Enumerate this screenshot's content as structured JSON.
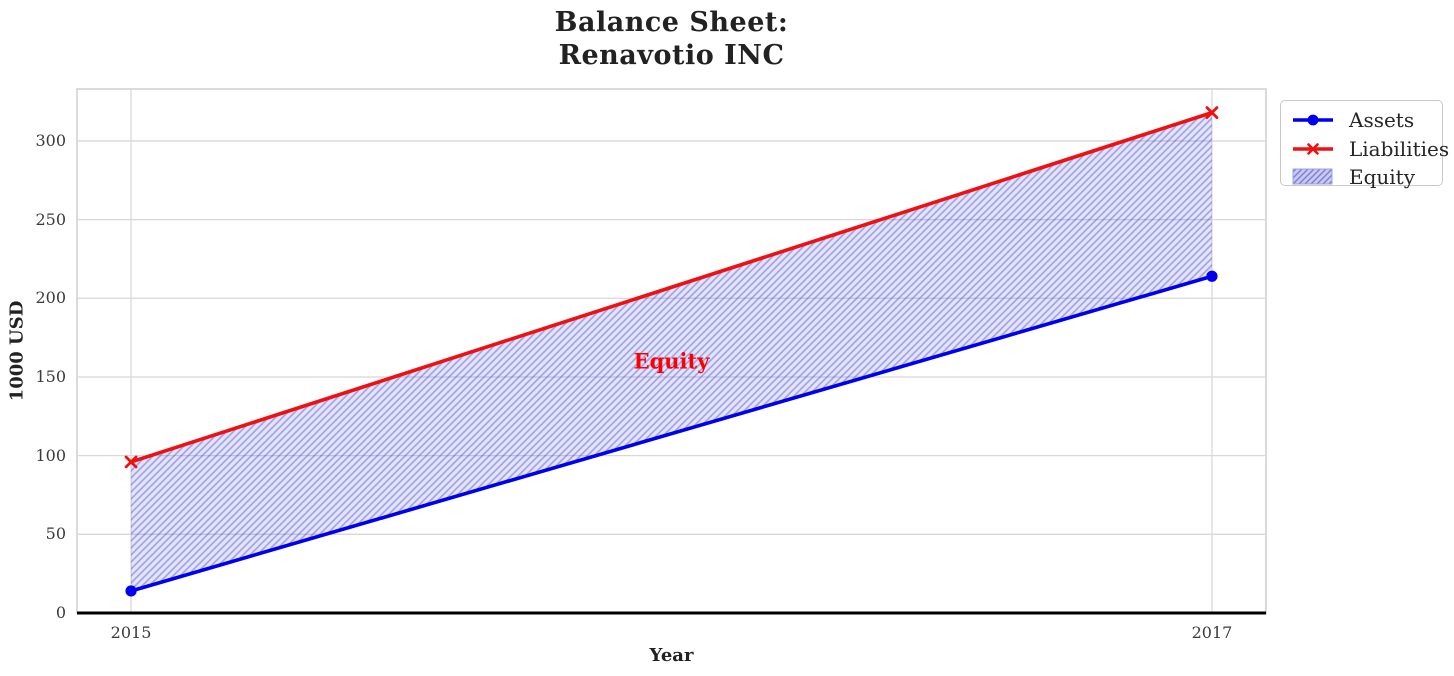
{
  "chart_data": {
    "type": "line",
    "title_lines": [
      "Balance Sheet:",
      "Renavotio INC"
    ],
    "title": "Balance Sheet:\nRenavotio INC",
    "xlabel": "Year",
    "ylabel": "1000 USD",
    "x": [
      2015,
      2017
    ],
    "series": [
      {
        "name": "Assets",
        "color": "#0000ee",
        "marker": "circle",
        "values": [
          14,
          214
        ]
      },
      {
        "name": "Liabilities",
        "color": "#f01010",
        "marker": "x",
        "values": [
          96,
          318
        ]
      }
    ],
    "fill_between": {
      "label": "Equity",
      "between": [
        "Assets",
        "Liabilities"
      ],
      "fill_color": "rgba(50,50,220,0.13)",
      "hatch": "//",
      "hatch_color": "rgba(60,60,215,0.38)",
      "legend_fill": "#c9c9f1",
      "legend_hatch": "#7f7fd6"
    },
    "annotation": {
      "text": "Equity",
      "x": 2016,
      "y": 160,
      "color": "#ff0000"
    },
    "xticks": [
      2015,
      2017
    ],
    "yticks": [
      0,
      50,
      100,
      150,
      200,
      250,
      300
    ],
    "xlim": [
      2014.9,
      2017.1
    ],
    "ylim": [
      0,
      333
    ],
    "grid": true,
    "grid_color": "#d8d8d8",
    "spine_color": "#cbcbcb",
    "zero_axis_color": "#000000",
    "legend_position": "outside upper right"
  }
}
